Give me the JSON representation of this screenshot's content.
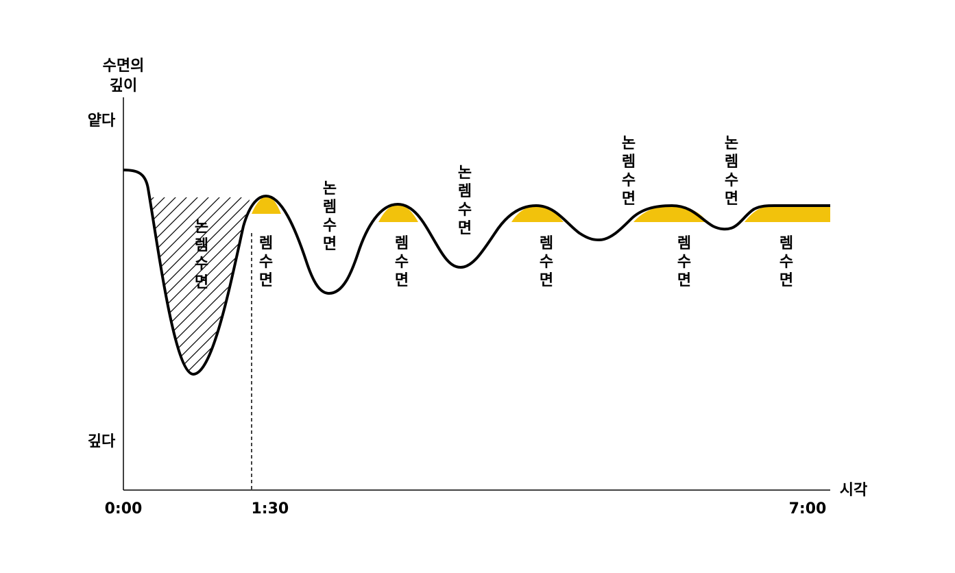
{
  "axis": {
    "y_title_line1": "수면의",
    "y_title_line2": "깊이",
    "y_top": "얕다",
    "y_bottom": "깊다",
    "x_title": "시각"
  },
  "ticks": [
    {
      "label": "0:00",
      "hour": 0
    },
    {
      "label": "1:30",
      "hour": 1.5
    },
    {
      "label": "7:00",
      "hour": 7
    }
  ],
  "stage_labels": [
    {
      "text": "논렘수면",
      "kind": "non-rem"
    },
    {
      "text": "렘수면",
      "kind": "rem"
    },
    {
      "text": "논렘수면",
      "kind": "non-rem"
    },
    {
      "text": "렘수면",
      "kind": "rem"
    },
    {
      "text": "논렘수면",
      "kind": "non-rem"
    },
    {
      "text": "렘수면",
      "kind": "rem"
    },
    {
      "text": "논렘수면",
      "kind": "non-rem"
    },
    {
      "text": "렘수면",
      "kind": "rem"
    },
    {
      "text": "논렘수면",
      "kind": "non-rem"
    },
    {
      "text": "렘수면",
      "kind": "rem"
    }
  ],
  "colors": {
    "curve": "#000000",
    "rem_fill": "#f2c20c",
    "axis": "#000000"
  }
}
